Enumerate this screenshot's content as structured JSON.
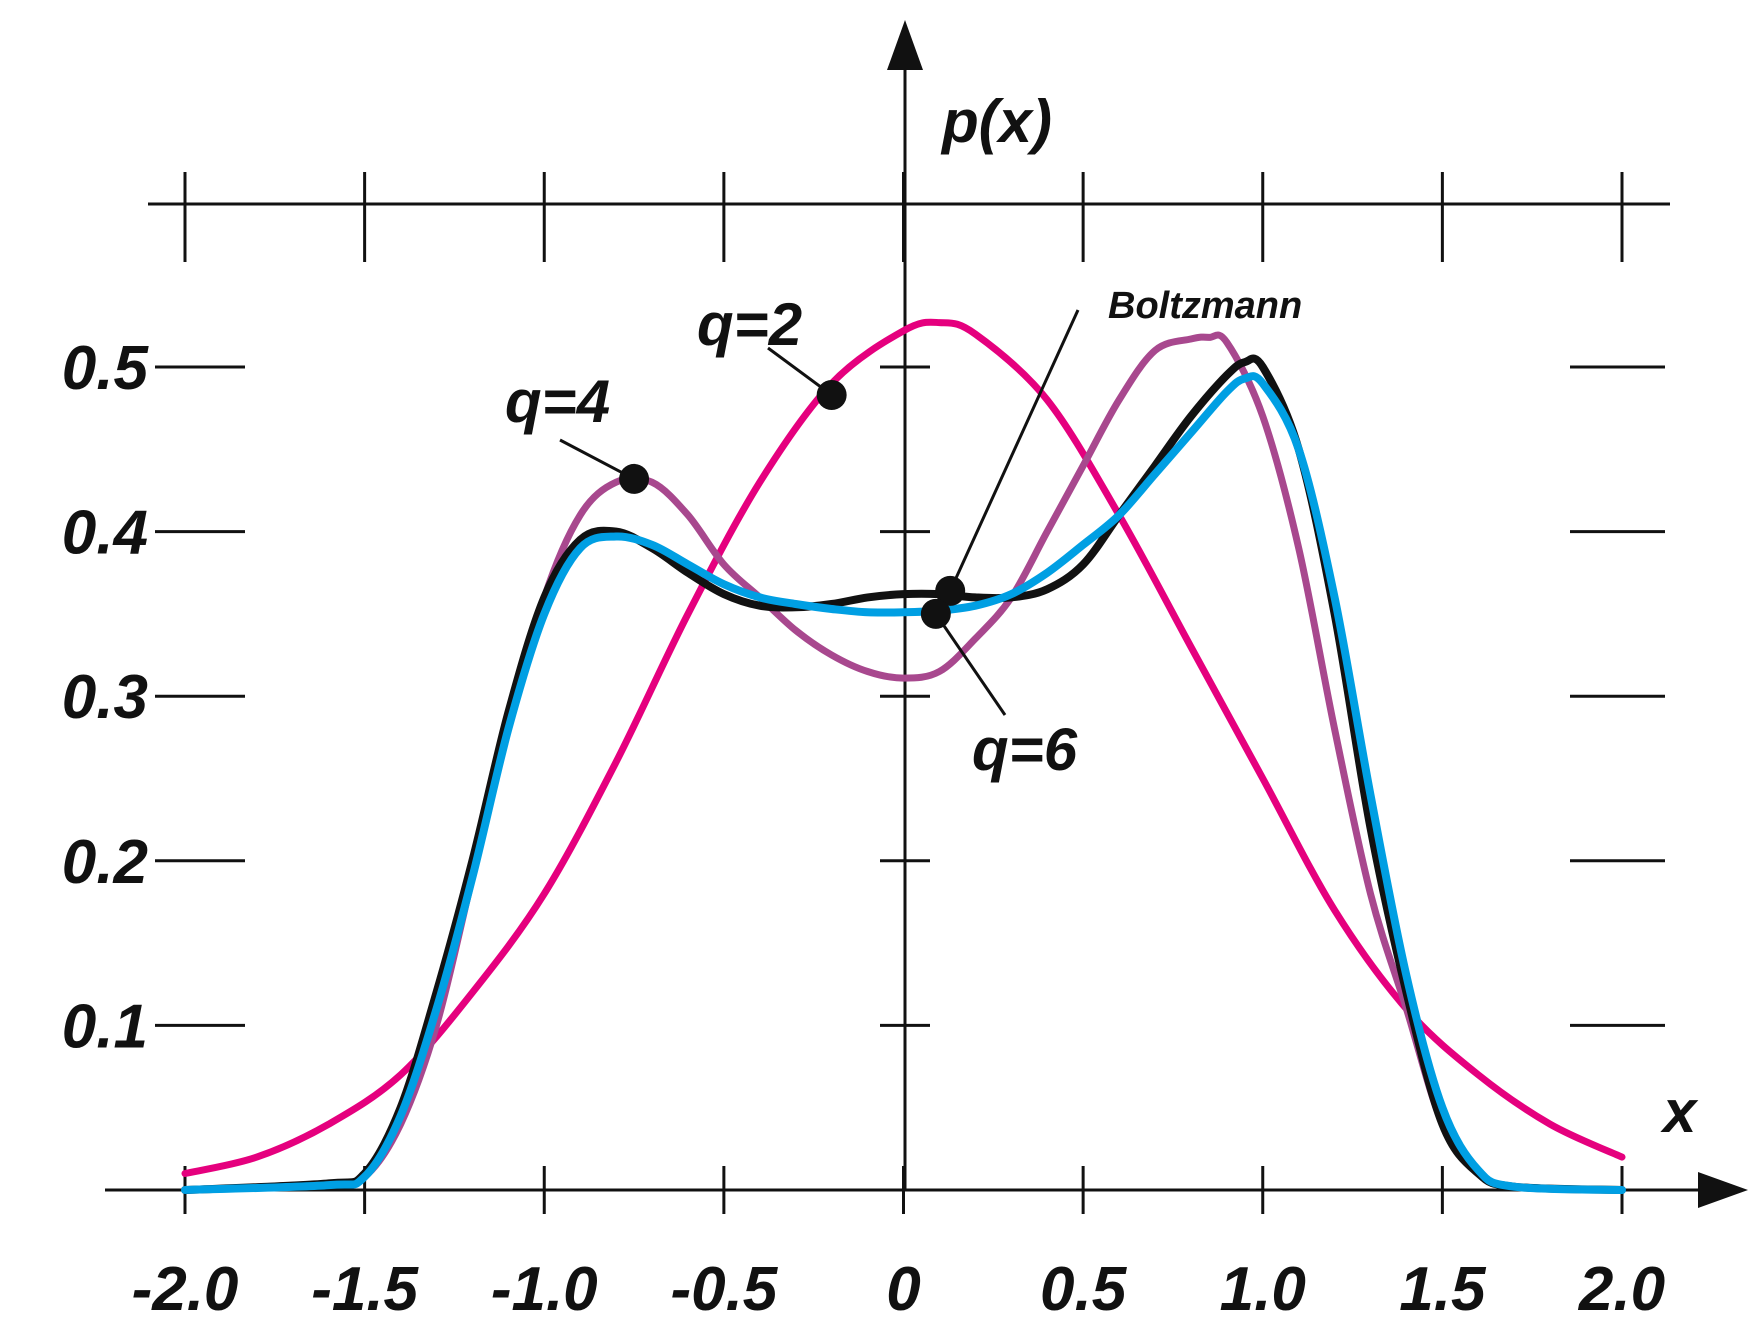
{
  "chart_data": {
    "type": "line",
    "title": "",
    "xlabel": "x",
    "ylabel": "p(x)",
    "xlim": [
      -2.0,
      2.0
    ],
    "ylim": [
      0,
      0.6
    ],
    "x_ticks": [
      -2.0,
      -1.5,
      -1.0,
      -0.5,
      0,
      0.5,
      1.0,
      1.5,
      2.0
    ],
    "x_tick_labels": [
      "-2.0",
      "-1.5",
      "-1.0",
      "-0.5",
      "0",
      "0.5",
      "1.0",
      "1.5",
      "2.0"
    ],
    "y_ticks": [
      0.1,
      0.2,
      0.3,
      0.4,
      0.5
    ],
    "y_tick_labels": [
      "0.1",
      "0.2",
      "0.3",
      "0.4",
      "0.5"
    ],
    "grid": false,
    "series": [
      {
        "name": "q=2",
        "color": "#e5007e",
        "x": [
          -2.0,
          -1.8,
          -1.6,
          -1.4,
          -1.2,
          -1.0,
          -0.8,
          -0.6,
          -0.4,
          -0.2,
          0.0,
          0.1,
          0.2,
          0.4,
          0.6,
          0.8,
          1.0,
          1.2,
          1.4,
          1.6,
          1.8,
          2.0
        ],
        "y": [
          0.01,
          0.02,
          0.04,
          0.07,
          0.12,
          0.18,
          0.26,
          0.35,
          0.43,
          0.49,
          0.522,
          0.527,
          0.52,
          0.48,
          0.41,
          0.33,
          0.25,
          0.17,
          0.11,
          0.07,
          0.04,
          0.02
        ]
      },
      {
        "name": "q=4",
        "color": "#a8488e",
        "x": [
          -2.0,
          -1.6,
          -1.5,
          -1.4,
          -1.3,
          -1.2,
          -1.1,
          -1.0,
          -0.9,
          -0.8,
          -0.7,
          -0.6,
          -0.5,
          -0.4,
          -0.3,
          -0.2,
          -0.1,
          0.0,
          0.1,
          0.2,
          0.3,
          0.4,
          0.5,
          0.6,
          0.7,
          0.8,
          0.85,
          0.9,
          1.0,
          1.1,
          1.2,
          1.3,
          1.4,
          1.5,
          1.6,
          1.7,
          2.0
        ],
        "y": [
          0.0,
          0.004,
          0.008,
          0.04,
          0.1,
          0.19,
          0.28,
          0.36,
          0.41,
          0.43,
          0.43,
          0.41,
          0.38,
          0.36,
          0.34,
          0.325,
          0.315,
          0.311,
          0.315,
          0.335,
          0.36,
          0.4,
          0.44,
          0.48,
          0.51,
          0.517,
          0.518,
          0.515,
          0.47,
          0.39,
          0.28,
          0.18,
          0.11,
          0.04,
          0.01,
          0.002,
          0.0
        ]
      },
      {
        "name": "Boltzmann",
        "color": "#111111",
        "x": [
          -2.0,
          -1.6,
          -1.5,
          -1.4,
          -1.3,
          -1.2,
          -1.1,
          -1.0,
          -0.9,
          -0.8,
          -0.7,
          -0.6,
          -0.5,
          -0.4,
          -0.3,
          -0.2,
          -0.1,
          0.0,
          0.1,
          0.2,
          0.3,
          0.4,
          0.5,
          0.6,
          0.7,
          0.8,
          0.9,
          0.95,
          1.0,
          1.1,
          1.2,
          1.3,
          1.4,
          1.5,
          1.6,
          1.7,
          2.0
        ],
        "y": [
          0.0,
          0.004,
          0.01,
          0.05,
          0.12,
          0.2,
          0.29,
          0.36,
          0.395,
          0.4,
          0.39,
          0.375,
          0.362,
          0.355,
          0.354,
          0.356,
          0.36,
          0.362,
          0.362,
          0.36,
          0.36,
          0.365,
          0.38,
          0.41,
          0.44,
          0.47,
          0.495,
          0.503,
          0.5,
          0.45,
          0.35,
          0.22,
          0.12,
          0.04,
          0.01,
          0.002,
          0.0
        ]
      },
      {
        "name": "q=6",
        "color": "#009fe3",
        "x": [
          -2.0,
          -1.6,
          -1.5,
          -1.4,
          -1.3,
          -1.2,
          -1.1,
          -1.0,
          -0.9,
          -0.8,
          -0.7,
          -0.6,
          -0.5,
          -0.4,
          -0.3,
          -0.2,
          -0.1,
          0.0,
          0.1,
          0.2,
          0.3,
          0.4,
          0.5,
          0.6,
          0.7,
          0.8,
          0.9,
          0.95,
          1.0,
          1.1,
          1.2,
          1.3,
          1.4,
          1.5,
          1.6,
          1.7,
          2.0
        ],
        "y": [
          0.0,
          0.003,
          0.008,
          0.045,
          0.11,
          0.19,
          0.28,
          0.35,
          0.39,
          0.397,
          0.392,
          0.38,
          0.368,
          0.36,
          0.356,
          0.353,
          0.351,
          0.351,
          0.352,
          0.355,
          0.362,
          0.375,
          0.392,
          0.41,
          0.435,
          0.46,
          0.485,
          0.493,
          0.49,
          0.45,
          0.36,
          0.24,
          0.13,
          0.05,
          0.012,
          0.002,
          0.0
        ]
      }
    ],
    "annotations": [
      {
        "text": "q=2",
        "series": "q=2",
        "point": [
          -0.2,
          0.483
        ]
      },
      {
        "text": "q=4",
        "series": "q=4",
        "point": [
          -0.75,
          0.432
        ]
      },
      {
        "text": "Boltzmann",
        "series": "Boltzmann",
        "point": [
          0.13,
          0.364
        ]
      },
      {
        "text": "q=6",
        "series": "q=6",
        "point": [
          0.09,
          0.35
        ]
      }
    ]
  }
}
